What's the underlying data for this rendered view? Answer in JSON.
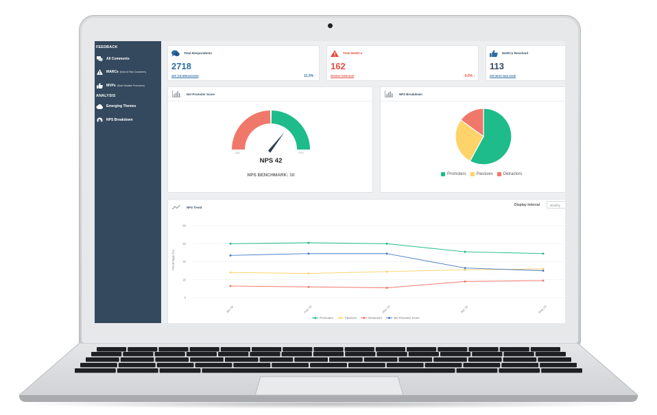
{
  "sidebar": {
    "sections": [
      {
        "title": "FEEDBACK",
        "items": [
          {
            "icon": "comments-icon",
            "label": "All Comments",
            "sub": ""
          },
          {
            "icon": "warning-icon",
            "label": "MARCs",
            "sub": "(Most At Risk Customers)"
          },
          {
            "icon": "thumbs-up-icon",
            "label": "MVPs",
            "sub": "(Most Valuable Promoters)"
          }
        ]
      },
      {
        "title": "ANALYSIS",
        "items": [
          {
            "icon": "cloud-icon",
            "label": "Emerging Themes",
            "sub": ""
          },
          {
            "icon": "dashboard-icon",
            "label": "NPS Breakdown",
            "sub": ""
          }
        ]
      }
    ]
  },
  "kpis": [
    {
      "title": "Total Respondents",
      "value": "2718",
      "link": "SEE THE BREAKDOWN",
      "change": "11.3% ↑",
      "color": "#2e6da4",
      "title_color": "#34495e",
      "icon": "comments-icon"
    },
    {
      "title": "Total MARCs",
      "value": "162",
      "link": "REVIEW THEM NOW",
      "change": "-0.0% ↓",
      "color": "#e74c3c",
      "title_color": "#e74c3c",
      "icon": "warning-icon"
    },
    {
      "title": "MARCs Resolved",
      "value": "113",
      "link": "SEE WHAT WAS DONE",
      "change": "",
      "color": "#34495e",
      "title_color": "#34495e",
      "icon": "thumbs-up-icon"
    }
  ],
  "nps_panel": {
    "title": "Net Promoter Score",
    "icon": "bar-chart-icon",
    "gauge_label": "NPS 42",
    "nps_value": 42,
    "min_label": "-100",
    "mid_label": "0",
    "max_label": "+100",
    "benchmark": "NPS BENCHMARK: 10",
    "colors": {
      "negative": "#f0786a",
      "positive": "#1ebc8a",
      "needle": "#2c3e50"
    }
  },
  "breakdown_panel": {
    "title": "NPS Breakdown",
    "icon": "bar-chart-icon",
    "chart_data": {
      "type": "pie",
      "slices": [
        {
          "name": "Promoters",
          "value": 58,
          "color": "#1ebc8a"
        },
        {
          "name": "Passives",
          "value": 27,
          "color": "#fdd36a"
        },
        {
          "name": "Detractors",
          "value": 15,
          "color": "#f0786a"
        }
      ],
      "legend": "bottom"
    }
  },
  "trend_panel": {
    "title": "NPS Trend",
    "icon": "trend-line-icon",
    "interval_label": "Display Interval",
    "interval_value": "Monthly",
    "chart_data": {
      "type": "line",
      "ylabel": "Percentage (%)",
      "ylim": [
        0,
        80
      ],
      "yticks": [
        0,
        20,
        40,
        60,
        80
      ],
      "categories": [
        "Jan 19",
        "Feb 19",
        "Mar 19",
        "Apr 19",
        "May 19"
      ],
      "x": [
        0,
        1,
        2,
        3,
        4
      ],
      "series": [
        {
          "name": "Promoters",
          "color": "#1ebc8a",
          "values": [
            60,
            61,
            60,
            51,
            49
          ]
        },
        {
          "name": "Passives",
          "color": "#fdd36a",
          "values": [
            28,
            27,
            29,
            31,
            32
          ]
        },
        {
          "name": "Detractors",
          "color": "#f0786a",
          "values": [
            13,
            12,
            11,
            18,
            19
          ]
        },
        {
          "name": "Net Promoter Score",
          "color": "#4a7cc9",
          "values": [
            47,
            49,
            49,
            33,
            30
          ]
        }
      ],
      "grid": true,
      "legend": "bottom"
    }
  }
}
